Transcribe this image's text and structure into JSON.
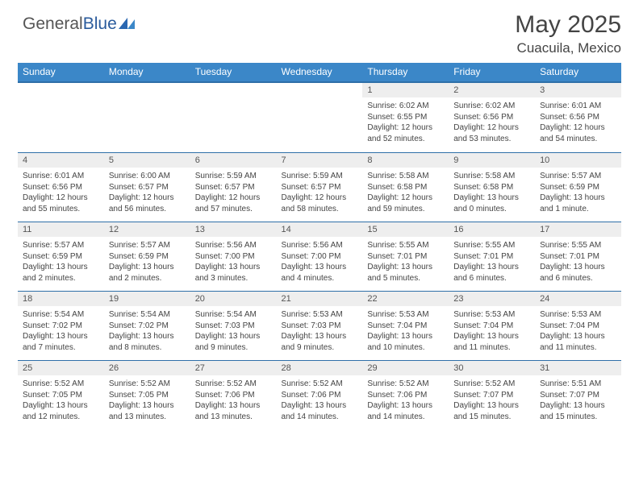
{
  "brand": {
    "text1": "General",
    "text2": "Blue",
    "mark_color": "#2a67b1"
  },
  "header": {
    "month": "May 2025",
    "location": "Cuacuila, Mexico"
  },
  "colors": {
    "header_bg": "#3b87c8",
    "header_border": "#2e6fa8",
    "daynum_bg": "#eeeeee"
  },
  "day_headers": [
    "Sunday",
    "Monday",
    "Tuesday",
    "Wednesday",
    "Thursday",
    "Friday",
    "Saturday"
  ],
  "weeks": [
    [
      {
        "num": "",
        "sunrise": "",
        "sunset": "",
        "daylight": ""
      },
      {
        "num": "",
        "sunrise": "",
        "sunset": "",
        "daylight": ""
      },
      {
        "num": "",
        "sunrise": "",
        "sunset": "",
        "daylight": ""
      },
      {
        "num": "",
        "sunrise": "",
        "sunset": "",
        "daylight": ""
      },
      {
        "num": "1",
        "sunrise": "Sunrise: 6:02 AM",
        "sunset": "Sunset: 6:55 PM",
        "daylight": "Daylight: 12 hours and 52 minutes."
      },
      {
        "num": "2",
        "sunrise": "Sunrise: 6:02 AM",
        "sunset": "Sunset: 6:56 PM",
        "daylight": "Daylight: 12 hours and 53 minutes."
      },
      {
        "num": "3",
        "sunrise": "Sunrise: 6:01 AM",
        "sunset": "Sunset: 6:56 PM",
        "daylight": "Daylight: 12 hours and 54 minutes."
      }
    ],
    [
      {
        "num": "4",
        "sunrise": "Sunrise: 6:01 AM",
        "sunset": "Sunset: 6:56 PM",
        "daylight": "Daylight: 12 hours and 55 minutes."
      },
      {
        "num": "5",
        "sunrise": "Sunrise: 6:00 AM",
        "sunset": "Sunset: 6:57 PM",
        "daylight": "Daylight: 12 hours and 56 minutes."
      },
      {
        "num": "6",
        "sunrise": "Sunrise: 5:59 AM",
        "sunset": "Sunset: 6:57 PM",
        "daylight": "Daylight: 12 hours and 57 minutes."
      },
      {
        "num": "7",
        "sunrise": "Sunrise: 5:59 AM",
        "sunset": "Sunset: 6:57 PM",
        "daylight": "Daylight: 12 hours and 58 minutes."
      },
      {
        "num": "8",
        "sunrise": "Sunrise: 5:58 AM",
        "sunset": "Sunset: 6:58 PM",
        "daylight": "Daylight: 12 hours and 59 minutes."
      },
      {
        "num": "9",
        "sunrise": "Sunrise: 5:58 AM",
        "sunset": "Sunset: 6:58 PM",
        "daylight": "Daylight: 13 hours and 0 minutes."
      },
      {
        "num": "10",
        "sunrise": "Sunrise: 5:57 AM",
        "sunset": "Sunset: 6:59 PM",
        "daylight": "Daylight: 13 hours and 1 minute."
      }
    ],
    [
      {
        "num": "11",
        "sunrise": "Sunrise: 5:57 AM",
        "sunset": "Sunset: 6:59 PM",
        "daylight": "Daylight: 13 hours and 2 minutes."
      },
      {
        "num": "12",
        "sunrise": "Sunrise: 5:57 AM",
        "sunset": "Sunset: 6:59 PM",
        "daylight": "Daylight: 13 hours and 2 minutes."
      },
      {
        "num": "13",
        "sunrise": "Sunrise: 5:56 AM",
        "sunset": "Sunset: 7:00 PM",
        "daylight": "Daylight: 13 hours and 3 minutes."
      },
      {
        "num": "14",
        "sunrise": "Sunrise: 5:56 AM",
        "sunset": "Sunset: 7:00 PM",
        "daylight": "Daylight: 13 hours and 4 minutes."
      },
      {
        "num": "15",
        "sunrise": "Sunrise: 5:55 AM",
        "sunset": "Sunset: 7:01 PM",
        "daylight": "Daylight: 13 hours and 5 minutes."
      },
      {
        "num": "16",
        "sunrise": "Sunrise: 5:55 AM",
        "sunset": "Sunset: 7:01 PM",
        "daylight": "Daylight: 13 hours and 6 minutes."
      },
      {
        "num": "17",
        "sunrise": "Sunrise: 5:55 AM",
        "sunset": "Sunset: 7:01 PM",
        "daylight": "Daylight: 13 hours and 6 minutes."
      }
    ],
    [
      {
        "num": "18",
        "sunrise": "Sunrise: 5:54 AM",
        "sunset": "Sunset: 7:02 PM",
        "daylight": "Daylight: 13 hours and 7 minutes."
      },
      {
        "num": "19",
        "sunrise": "Sunrise: 5:54 AM",
        "sunset": "Sunset: 7:02 PM",
        "daylight": "Daylight: 13 hours and 8 minutes."
      },
      {
        "num": "20",
        "sunrise": "Sunrise: 5:54 AM",
        "sunset": "Sunset: 7:03 PM",
        "daylight": "Daylight: 13 hours and 9 minutes."
      },
      {
        "num": "21",
        "sunrise": "Sunrise: 5:53 AM",
        "sunset": "Sunset: 7:03 PM",
        "daylight": "Daylight: 13 hours and 9 minutes."
      },
      {
        "num": "22",
        "sunrise": "Sunrise: 5:53 AM",
        "sunset": "Sunset: 7:04 PM",
        "daylight": "Daylight: 13 hours and 10 minutes."
      },
      {
        "num": "23",
        "sunrise": "Sunrise: 5:53 AM",
        "sunset": "Sunset: 7:04 PM",
        "daylight": "Daylight: 13 hours and 11 minutes."
      },
      {
        "num": "24",
        "sunrise": "Sunrise: 5:53 AM",
        "sunset": "Sunset: 7:04 PM",
        "daylight": "Daylight: 13 hours and 11 minutes."
      }
    ],
    [
      {
        "num": "25",
        "sunrise": "Sunrise: 5:52 AM",
        "sunset": "Sunset: 7:05 PM",
        "daylight": "Daylight: 13 hours and 12 minutes."
      },
      {
        "num": "26",
        "sunrise": "Sunrise: 5:52 AM",
        "sunset": "Sunset: 7:05 PM",
        "daylight": "Daylight: 13 hours and 13 minutes."
      },
      {
        "num": "27",
        "sunrise": "Sunrise: 5:52 AM",
        "sunset": "Sunset: 7:06 PM",
        "daylight": "Daylight: 13 hours and 13 minutes."
      },
      {
        "num": "28",
        "sunrise": "Sunrise: 5:52 AM",
        "sunset": "Sunset: 7:06 PM",
        "daylight": "Daylight: 13 hours and 14 minutes."
      },
      {
        "num": "29",
        "sunrise": "Sunrise: 5:52 AM",
        "sunset": "Sunset: 7:06 PM",
        "daylight": "Daylight: 13 hours and 14 minutes."
      },
      {
        "num": "30",
        "sunrise": "Sunrise: 5:52 AM",
        "sunset": "Sunset: 7:07 PM",
        "daylight": "Daylight: 13 hours and 15 minutes."
      },
      {
        "num": "31",
        "sunrise": "Sunrise: 5:51 AM",
        "sunset": "Sunset: 7:07 PM",
        "daylight": "Daylight: 13 hours and 15 minutes."
      }
    ]
  ]
}
